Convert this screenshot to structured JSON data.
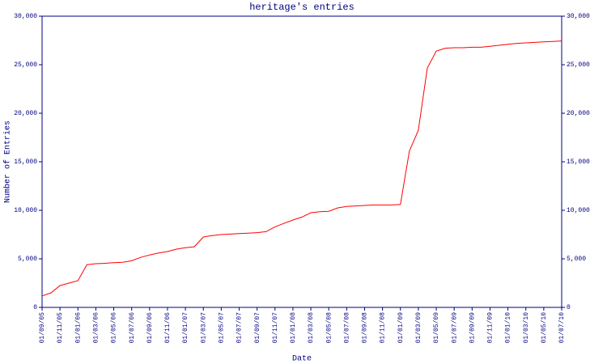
{
  "chart_data": {
    "type": "line",
    "title": "heritage's entries",
    "xlabel": "Date",
    "ylabel": "Number of Entries",
    "categories": [
      "01/09/05",
      null,
      "01/11/05",
      null,
      "01/01/06",
      null,
      "01/03/06",
      null,
      "01/05/06",
      null,
      "01/07/06",
      null,
      "01/09/06",
      null,
      "01/11/06",
      null,
      "01/01/07",
      null,
      "01/03/07",
      null,
      "01/05/07",
      null,
      "01/07/07",
      null,
      "01/09/07",
      null,
      "01/11/07",
      null,
      "01/01/08",
      null,
      "01/03/08",
      null,
      "01/05/08",
      null,
      "01/07/08",
      null,
      "01/09/08",
      null,
      "01/11/08",
      null,
      "01/01/09",
      null,
      "01/03/09",
      null,
      "01/05/09",
      null,
      "01/07/09",
      null,
      "01/09/09",
      null,
      "01/11/09",
      null,
      "01/01/10",
      null,
      "01/03/10",
      null,
      "01/05/10",
      null,
      "01/07/10"
    ],
    "values": [
      1170,
      1500,
      2250,
      2500,
      2750,
      4400,
      4500,
      4540,
      4600,
      4650,
      4800,
      5150,
      5400,
      5600,
      5750,
      6000,
      6150,
      6250,
      7250,
      7400,
      7500,
      7550,
      7600,
      7650,
      7700,
      7800,
      8300,
      8650,
      9000,
      9300,
      9750,
      9850,
      9900,
      10250,
      10400,
      10450,
      10500,
      10550,
      10550,
      10550,
      10600,
      16100,
      18250,
      24650,
      26400,
      26700,
      26750,
      26750,
      26800,
      26800,
      26900,
      27000,
      27100,
      27200,
      27250,
      27300,
      27350,
      27400,
      27450
    ],
    "color": "#ff0000",
    "axis_color": "#000080",
    "ylim": [
      0,
      30000
    ],
    "yticks": [
      0,
      {
        "value": 5000,
        "label": "5,000"
      },
      {
        "value": 10000,
        "label": "10,000"
      },
      {
        "value": 15000,
        "label": "15,000"
      },
      {
        "value": 20000,
        "label": "20,000"
      },
      {
        "value": 25000,
        "label": "25,000"
      },
      {
        "value": 30000,
        "label": "30,000"
      }
    ],
    "grid": false
  }
}
